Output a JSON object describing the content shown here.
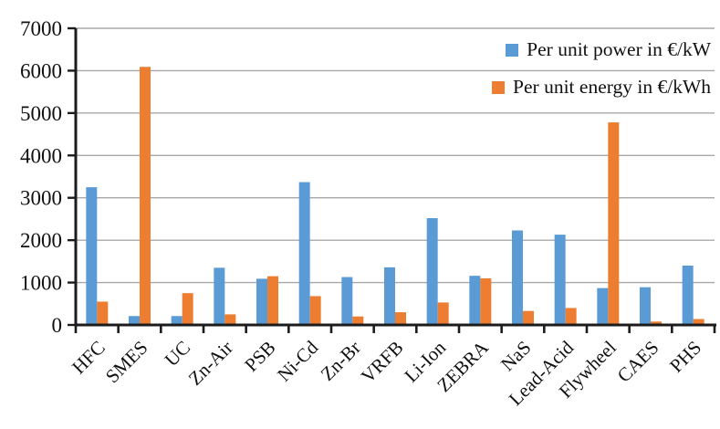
{
  "chart_data": {
    "type": "bar",
    "title": "",
    "xlabel": "",
    "ylabel": "",
    "categories": [
      "HFC",
      "SMES",
      "UC",
      "Zn-Air",
      "PSB",
      "Ni-Cd",
      "Zn-Br",
      "VRFB",
      "Li-Ion",
      "ZEBRA",
      "NaS",
      "Lead-Acid",
      "Flywheel",
      "CAES",
      "PHS"
    ],
    "series": [
      {
        "name": "Per unit power in €/kW",
        "key": "power",
        "color": "#5B9BD5",
        "values": [
          3250,
          210,
          210,
          1350,
          1090,
          3370,
          1130,
          1360,
          2520,
          1160,
          2230,
          2130,
          870,
          890,
          1400
        ]
      },
      {
        "name": "Per unit energy in €/kWh",
        "key": "energy",
        "color": "#ED7D31",
        "values": [
          550,
          6090,
          750,
          250,
          1150,
          680,
          200,
          300,
          530,
          1100,
          330,
          400,
          4780,
          80,
          140
        ]
      }
    ],
    "ylim": [
      0,
      7000
    ],
    "yticks": [
      "0",
      "1000",
      "2000",
      "3000",
      "4000",
      "5000",
      "6000",
      "7000"
    ],
    "grid": "horizontal",
    "legend_position": "top-right"
  },
  "style": {
    "axis_color": "#1c1c1c",
    "gridline_color": "#a8a8a8",
    "text_color": "#111111",
    "background": "#ffffff"
  }
}
